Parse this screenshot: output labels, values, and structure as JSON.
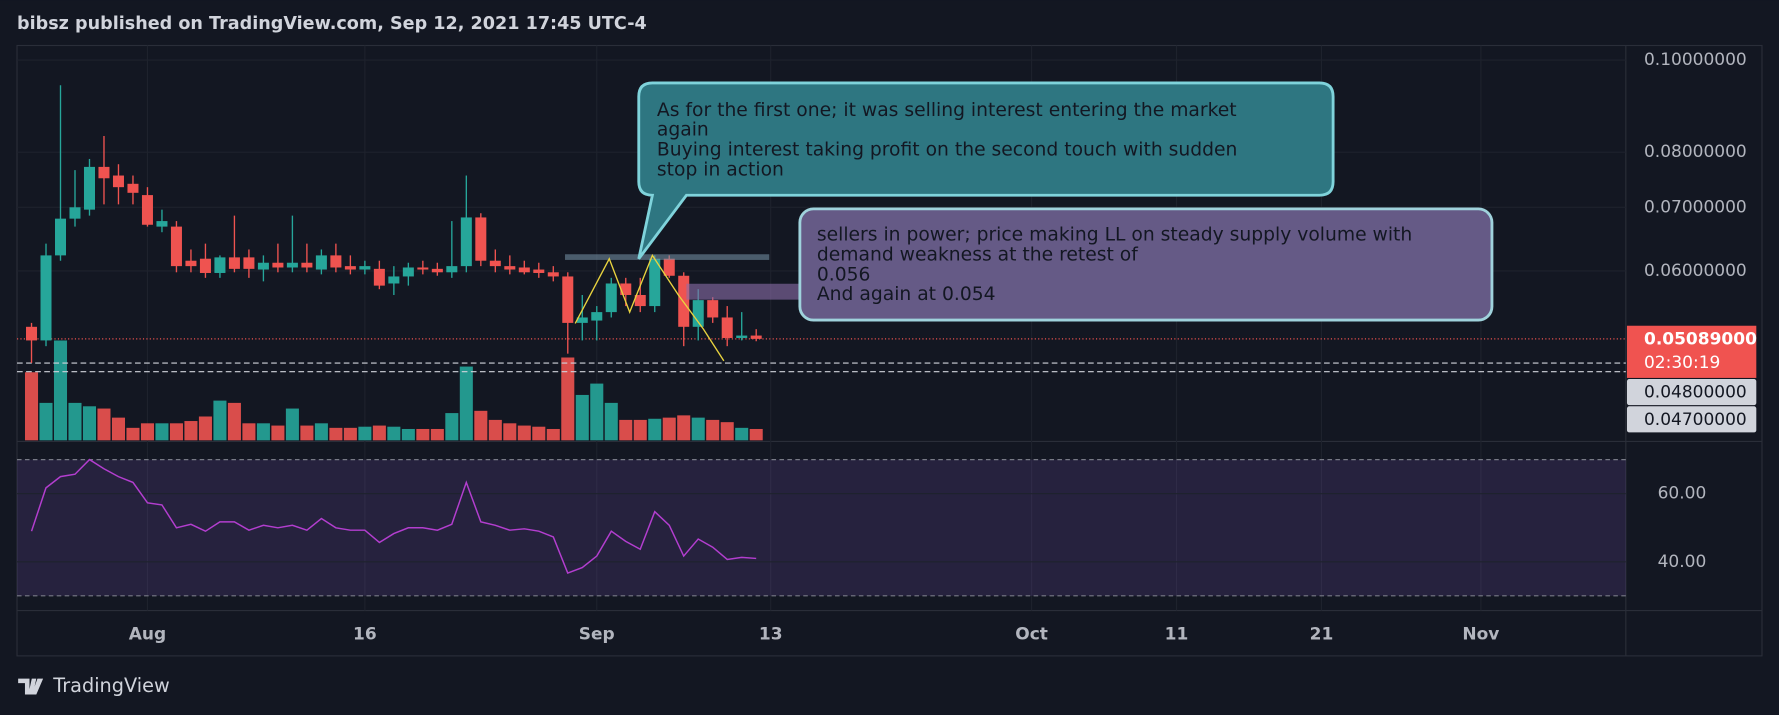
{
  "header": {
    "text": "bibsz published on TradingView.com, Sep 12, 2021 17:45 UTC-4"
  },
  "footer": {
    "brand": "TradingView"
  },
  "chart_data": {
    "type": "candlestick",
    "log_scale": true,
    "grid": true,
    "up_color": "#26a69a",
    "down_color": "#ef5350",
    "x": [
      "Jul 24",
      "Jul 25",
      "Jul 26",
      "Jul 27",
      "Jul 28",
      "Jul 29",
      "Jul 30",
      "Jul 31",
      "Aug 1",
      "Aug 2",
      "Aug 3",
      "Aug 4",
      "Aug 5",
      "Aug 6",
      "Aug 7",
      "Aug 8",
      "Aug 9",
      "Aug 10",
      "Aug 11",
      "Aug 12",
      "Aug 13",
      "Aug 14",
      "Aug 15",
      "Aug 16",
      "Aug 17",
      "Aug 18",
      "Aug 19",
      "Aug 20",
      "Aug 21",
      "Aug 22",
      "Aug 23",
      "Aug 24",
      "Aug 25",
      "Aug 26",
      "Aug 27",
      "Aug 28",
      "Aug 29",
      "Aug 30",
      "Aug 31",
      "Sep 1",
      "Sep 2",
      "Sep 3",
      "Sep 4",
      "Sep 5",
      "Sep 6",
      "Sep 7",
      "Sep 8",
      "Sep 9",
      "Sep 10",
      "Sep 11",
      "Sep 12"
    ],
    "open": [
      0.0524,
      0.0507,
      0.0623,
      0.0681,
      0.0696,
      0.0772,
      0.0756,
      0.0741,
      0.0721,
      0.0668,
      0.0668,
      0.0615,
      0.0618,
      0.0597,
      0.062,
      0.062,
      0.0602,
      0.0612,
      0.0605,
      0.0612,
      0.0602,
      0.0623,
      0.0607,
      0.0602,
      0.0603,
      0.0582,
      0.0592,
      0.0605,
      0.0603,
      0.0598,
      0.0607,
      0.0683,
      0.0615,
      0.0607,
      0.0605,
      0.0602,
      0.0598,
      0.0592,
      0.0529,
      0.0532,
      0.0543,
      0.0582,
      0.0566,
      0.0551,
      0.0618,
      0.0593,
      0.0524,
      0.0559,
      0.0536,
      0.051,
      0.0513
    ],
    "high": [
      0.0529,
      0.0641,
      0.0941,
      0.0766,
      0.0787,
      0.0832,
      0.0777,
      0.0756,
      0.0735,
      0.0696,
      0.0677,
      0.0632,
      0.0641,
      0.0623,
      0.0686,
      0.0632,
      0.0623,
      0.0641,
      0.0686,
      0.0641,
      0.0632,
      0.0641,
      0.0623,
      0.0615,
      0.0615,
      0.0607,
      0.0612,
      0.0615,
      0.0612,
      0.0677,
      0.0756,
      0.069,
      0.0632,
      0.0623,
      0.0615,
      0.0612,
      0.0607,
      0.0598,
      0.0566,
      0.0551,
      0.059,
      0.059,
      0.059,
      0.0623,
      0.0623,
      0.0598,
      0.0574,
      0.0563,
      0.0551,
      0.0543,
      0.0521
    ],
    "low": [
      0.048,
      0.05,
      0.0615,
      0.0668,
      0.0686,
      0.0705,
      0.0705,
      0.0705,
      0.0668,
      0.0659,
      0.0598,
      0.0598,
      0.059,
      0.059,
      0.0598,
      0.059,
      0.0585,
      0.0598,
      0.0598,
      0.0598,
      0.0595,
      0.0598,
      0.0595,
      0.0595,
      0.0574,
      0.0566,
      0.0579,
      0.0595,
      0.0593,
      0.059,
      0.0598,
      0.0607,
      0.0598,
      0.0595,
      0.0595,
      0.059,
      0.0585,
      0.0491,
      0.0507,
      0.0507,
      0.0536,
      0.0551,
      0.0543,
      0.0543,
      0.059,
      0.05,
      0.0507,
      0.0529,
      0.05,
      0.0507,
      0.0506
    ],
    "close": [
      0.0507,
      0.0623,
      0.0681,
      0.07,
      0.0772,
      0.0751,
      0.0735,
      0.0725,
      0.0671,
      0.0677,
      0.0607,
      0.0607,
      0.0597,
      0.062,
      0.0603,
      0.0603,
      0.0612,
      0.0605,
      0.0612,
      0.0605,
      0.0623,
      0.0605,
      0.0602,
      0.0607,
      0.0579,
      0.0592,
      0.0605,
      0.0602,
      0.0598,
      0.0607,
      0.0683,
      0.0615,
      0.0607,
      0.0602,
      0.0598,
      0.0597,
      0.0592,
      0.0529,
      0.0536,
      0.0543,
      0.0582,
      0.0566,
      0.0551,
      0.0618,
      0.0593,
      0.0524,
      0.0559,
      0.0536,
      0.051,
      0.0513,
      0.05089
    ],
    "volume": [
      60,
      33,
      88,
      33,
      30,
      28,
      20,
      11,
      15,
      15,
      15,
      17,
      21,
      35,
      33,
      15,
      15,
      13,
      28,
      13,
      15,
      11,
      11,
      12,
      13,
      12,
      10,
      10,
      10,
      24,
      65,
      26,
      18,
      15,
      13,
      12,
      10,
      73,
      40,
      50,
      33,
      18,
      18,
      19,
      20,
      22,
      20,
      18,
      16,
      11,
      10
    ],
    "xlim": [
      "Jul 23",
      "Nov 11"
    ],
    "xticks": [
      {
        "value": "Aug 1",
        "label": "Aug"
      },
      {
        "value": "Aug 16",
        "label": "16"
      },
      {
        "value": "Sep 1",
        "label": "Sep"
      },
      {
        "value": "Sep 13",
        "label": "13"
      },
      {
        "value": "Oct 1",
        "label": "Oct"
      },
      {
        "value": "Oct 11",
        "label": "11"
      },
      {
        "value": "Oct 21",
        "label": "21"
      },
      {
        "value": "Nov 1",
        "label": "Nov"
      }
    ],
    "ylim": [
      0.0398,
      0.1036
    ],
    "yticks": [
      {
        "value": 0.1,
        "label": "0.10000000"
      },
      {
        "value": 0.08,
        "label": "0.08000000"
      },
      {
        "value": 0.07,
        "label": "0.07000000"
      },
      {
        "value": 0.06,
        "label": "0.06000000"
      }
    ],
    "last_price": {
      "value": 0.05089,
      "label": "0.05089000",
      "countdown": "02:30:19"
    },
    "price_lines": [
      {
        "value": 0.048,
        "label": "0.04800000"
      },
      {
        "value": 0.047,
        "label": "0.04700000"
      }
    ],
    "rsi": {
      "color": "#b33ecf",
      "values": [
        49,
        61.7,
        65,
        65.7,
        70,
        67.3,
        65,
        63.3,
        57.3,
        56.7,
        50,
        51,
        49,
        51.7,
        51.7,
        49.3,
        50.7,
        50,
        50.7,
        49.3,
        52.7,
        50,
        49.3,
        49.3,
        45.7,
        48.3,
        50,
        50,
        49.3,
        51,
        63.3,
        51.7,
        50.7,
        49.3,
        49.7,
        49,
        47.3,
        36.7,
        38.3,
        41.7,
        49,
        46,
        43.7,
        54.7,
        50.7,
        41.7,
        46.7,
        44.3,
        40.7,
        41.3,
        41
      ],
      "ylim": [
        25.7,
        75
      ],
      "yticks": [
        {
          "value": 60,
          "label": "60.00"
        },
        {
          "value": 40,
          "label": "40.00"
        }
      ],
      "bands": [
        70,
        30
      ]
    }
  },
  "annotations": [
    {
      "lines": [
        "As for the first one; it was selling interest entering the market",
        "again",
        "Buying interest taking profit on the second touch with sudden",
        "stop in action"
      ]
    },
    {
      "lines": [
        "sellers in power; price making LL on steady supply volume with",
        "demand weakness at the retest of",
        "0.056",
        "And again at 0.054"
      ]
    }
  ]
}
